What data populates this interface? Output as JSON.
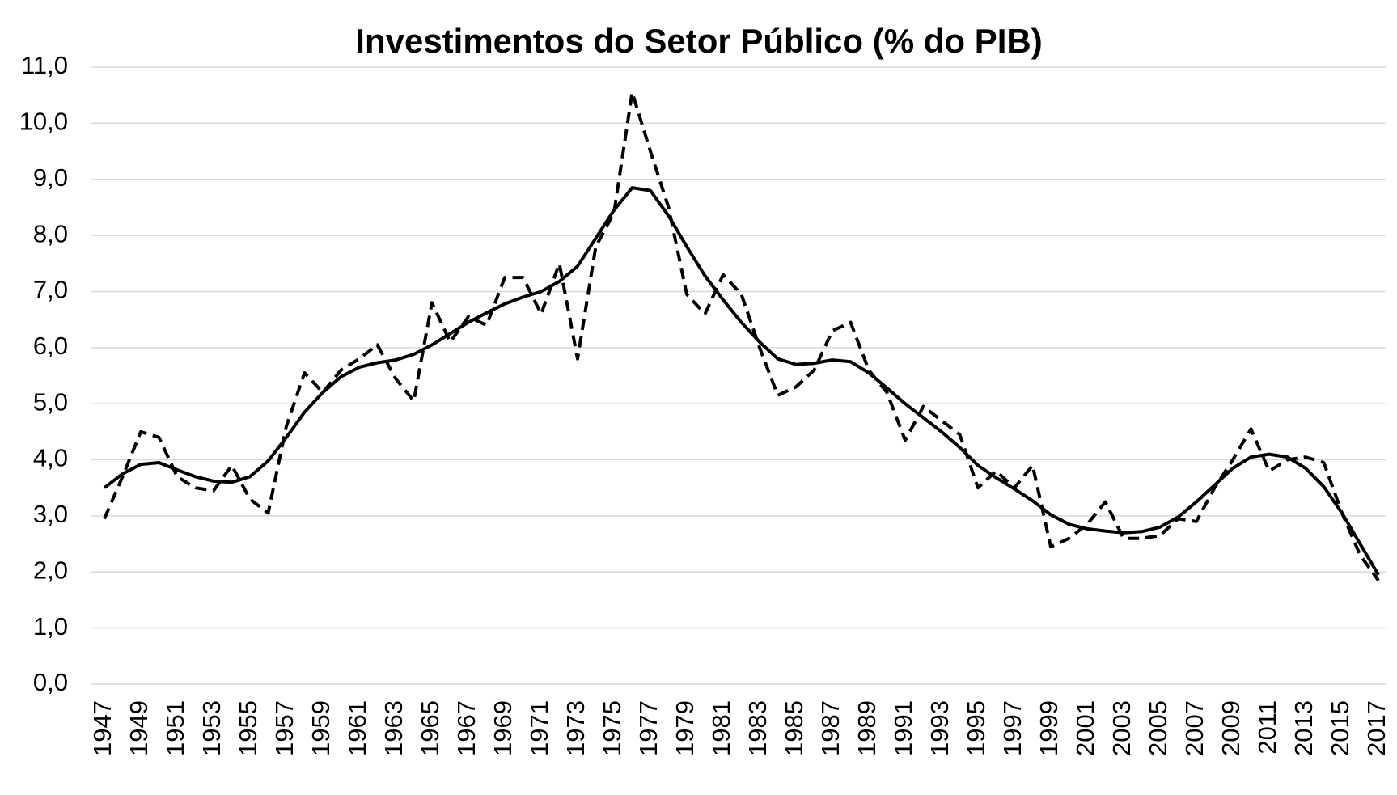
{
  "chart_data": {
    "type": "line",
    "title": "Investimentos do Setor Público (% do PIB)",
    "x": [
      1947,
      1948,
      1949,
      1950,
      1951,
      1952,
      1953,
      1954,
      1955,
      1956,
      1957,
      1958,
      1959,
      1960,
      1961,
      1962,
      1963,
      1964,
      1965,
      1966,
      1967,
      1968,
      1969,
      1970,
      1971,
      1972,
      1973,
      1974,
      1975,
      1976,
      1977,
      1978,
      1979,
      1980,
      1981,
      1982,
      1983,
      1984,
      1985,
      1986,
      1987,
      1988,
      1989,
      1990,
      1991,
      1992,
      1993,
      1994,
      1995,
      1996,
      1997,
      1998,
      1999,
      2000,
      2001,
      2002,
      2003,
      2004,
      2005,
      2006,
      2007,
      2008,
      2009,
      2010,
      2011,
      2012,
      2013,
      2014,
      2015,
      2016,
      2017
    ],
    "xlim": [
      1947,
      2017
    ],
    "xticks": [
      1947,
      1949,
      1951,
      1953,
      1955,
      1957,
      1959,
      1961,
      1963,
      1965,
      1967,
      1969,
      1971,
      1973,
      1975,
      1977,
      1979,
      1981,
      1983,
      1985,
      1987,
      1989,
      1991,
      1993,
      1995,
      1997,
      1999,
      2001,
      2003,
      2005,
      2007,
      2009,
      2011,
      2013,
      2015,
      2017
    ],
    "ylim": [
      0,
      11
    ],
    "yticks": [
      {
        "value": 0,
        "label": "0,0"
      },
      {
        "value": 1,
        "label": "1,0"
      },
      {
        "value": 2,
        "label": "2,0"
      },
      {
        "value": 3,
        "label": "3,0"
      },
      {
        "value": 4,
        "label": "4,0"
      },
      {
        "value": 5,
        "label": "5,0"
      },
      {
        "value": 6,
        "label": "6,0"
      },
      {
        "value": 7,
        "label": "7,0"
      },
      {
        "value": 8,
        "label": "8,0"
      },
      {
        "value": 9,
        "label": "9,0"
      },
      {
        "value": 10,
        "label": "10,0"
      },
      {
        "value": 11,
        "label": "11,0"
      }
    ],
    "grid": true,
    "series": [
      {
        "color": "#000000",
        "line_style": "dashed",
        "values": [
          2.95,
          3.7,
          4.5,
          4.4,
          3.7,
          3.5,
          3.45,
          3.9,
          3.3,
          3.05,
          4.6,
          5.55,
          5.2,
          5.6,
          5.8,
          6.05,
          5.45,
          5.05,
          6.8,
          6.1,
          6.55,
          6.4,
          7.25,
          7.25,
          6.6,
          7.5,
          5.8,
          7.8,
          8.4,
          10.55,
          9.5,
          8.5,
          6.95,
          6.6,
          7.3,
          6.95,
          6.0,
          5.15,
          5.3,
          5.6,
          6.3,
          6.45,
          5.6,
          5.2,
          4.35,
          4.95,
          4.7,
          4.45,
          3.5,
          3.8,
          3.5,
          3.9,
          2.45,
          2.6,
          2.85,
          3.25,
          2.6,
          2.6,
          2.65,
          2.95,
          2.9,
          3.5,
          4.0,
          4.55,
          3.8,
          4.0,
          4.05,
          3.95,
          3.05,
          2.3,
          1.85
        ]
      },
      {
        "color": "#000000",
        "line_style": "solid",
        "values": [
          3.5,
          3.75,
          3.92,
          3.95,
          3.82,
          3.7,
          3.62,
          3.6,
          3.7,
          3.98,
          4.4,
          4.85,
          5.2,
          5.48,
          5.65,
          5.73,
          5.78,
          5.88,
          6.05,
          6.25,
          6.45,
          6.62,
          6.78,
          6.9,
          7.0,
          7.18,
          7.45,
          7.95,
          8.45,
          8.85,
          8.8,
          8.35,
          7.8,
          7.28,
          6.85,
          6.45,
          6.1,
          5.8,
          5.7,
          5.72,
          5.78,
          5.75,
          5.55,
          5.28,
          5.0,
          4.75,
          4.5,
          4.22,
          3.9,
          3.68,
          3.48,
          3.27,
          3.02,
          2.85,
          2.77,
          2.73,
          2.7,
          2.72,
          2.8,
          2.98,
          3.25,
          3.55,
          3.85,
          4.05,
          4.1,
          4.05,
          3.85,
          3.52,
          3.05,
          2.5,
          1.95
        ]
      }
    ]
  }
}
